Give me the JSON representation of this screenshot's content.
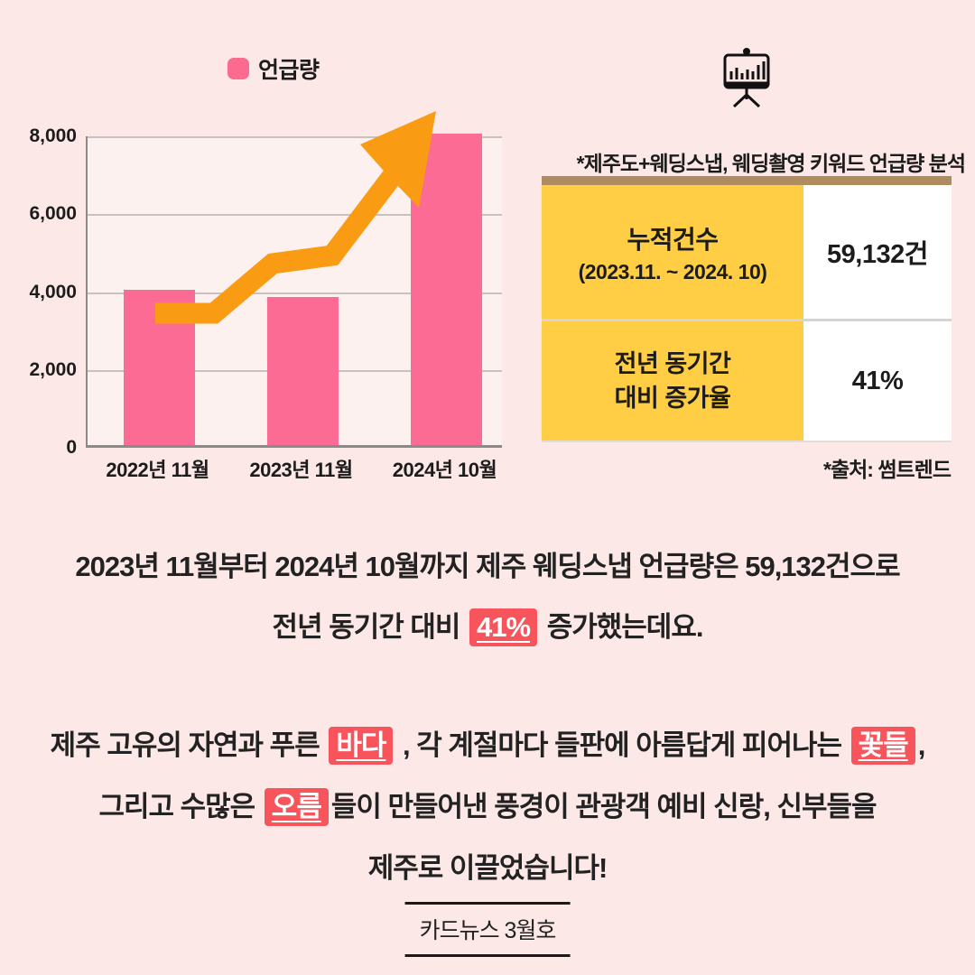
{
  "colors": {
    "page_bg": "#FCE9E7",
    "plot_bg": "#FDF1EF",
    "bar_pink": "#FC6B94",
    "legend_pink": "#FB6B8F",
    "arrow_orange": "#F99C14",
    "table_yellow": "#FFCE45",
    "table_topbar_brown": "#AE8C60",
    "highlight_red": "#F7545C"
  },
  "chart_data": [
    {
      "type": "bar",
      "legend": [
        "언급량"
      ],
      "categories": [
        "2022년 11월",
        "2023년 11월",
        "2024년 10월"
      ],
      "values": [
        4000,
        3800,
        8000
      ],
      "title": "",
      "xlabel": "",
      "ylabel": "",
      "ylim": [
        0,
        8000
      ],
      "yticks": [
        0,
        2000,
        4000,
        6000,
        8000
      ],
      "ytick_labels": [
        "0",
        "2,000",
        "4,000",
        "6,000",
        "8,000"
      ],
      "grid": true,
      "legend_position": "top",
      "annotations": [
        "thick orange upward trend arrow drawn over bars"
      ]
    },
    {
      "type": "table",
      "caption": "*제주도+웨딩스냅, 웨딩촬영 키워드 언급량 분석",
      "rows": [
        [
          "누적건수 (2023.11. ~ 2024. 10)",
          "59,132건"
        ],
        [
          "전년 동기간 대비 증가율",
          "41%"
        ]
      ],
      "source": "*출처: 썸트렌드"
    }
  ],
  "chart": {
    "legend_label": "언급량"
  },
  "panel": {
    "icon": "presentation-bar-chart",
    "caption": "*제주도+웨딩스냅, 웨딩촬영 키워드 언급량 분석",
    "table": {
      "rows": [
        {
          "lines": [
            "누적건수"
          ],
          "note": "(2023.11. ~ 2024. 10)",
          "value": "59,132건"
        },
        {
          "lines": [
            "전년 동기간",
            "대비 증가율"
          ],
          "value": "41%"
        }
      ]
    },
    "source": "*출처: 썸트렌드"
  },
  "body": {
    "p1_line1": "2023년 11월부터 2024년 10월까지 제주 웨딩스냅 언급량은 59,132건으로",
    "p1_line2_pre": "전년 동기간 대비",
    "p1_highlight": "41%",
    "p1_line2_post": "증가했는데요.",
    "p2_line1_pre": "제주 고유의 자연과 푸른",
    "p2_highlight1": "바다",
    "p2_line1_mid": ", 각 계절마다 들판에 아름답게 피어나는",
    "p2_highlight2": "꽃들",
    "p2_line1_post": ",",
    "p2_line2_pre": "그리고 수많은",
    "p2_highlight3": "오름",
    "p2_line2_post": "들이 만들어낸 풍경이 관광객 예비 신랑, 신부들을",
    "p2_line3": "제주로 이끌었습니다!"
  },
  "footer": {
    "label": "카드뉴스 3월호"
  }
}
